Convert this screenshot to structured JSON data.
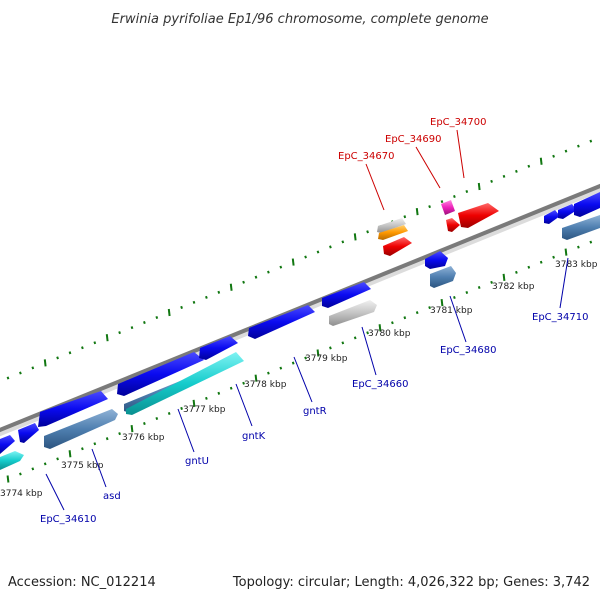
{
  "title": "Erwinia pyrifoliae Ep1/96 chromosome, complete genome",
  "footer": {
    "accession": "Accession: NC_012214",
    "summary": "Topology: circular; Length: 4,026,322 bp; Genes: 3,742"
  },
  "colors": {
    "forward_label": "#cc0000",
    "reverse_label": "#0000aa",
    "backbone": "#7a7a7a",
    "tick": "#117711"
  },
  "scale_labels": [
    "3774 kbp",
    "3775 kbp",
    "3776 kbp",
    "3777 kbp",
    "3778 kbp",
    "3779 kbp",
    "3780 kbp",
    "3781 kbp",
    "3782 kbp",
    "3783 kbp"
  ],
  "gene_labels": {
    "EpC_34670": "EpC_34670",
    "EpC_34690": "EpC_34690",
    "EpC_34700": "EpC_34700",
    "EpC_34610": "EpC_34610",
    "asd": "asd",
    "gntU": "gntU",
    "gntK": "gntK",
    "gntR": "gntR",
    "EpC_34660": "EpC_34660",
    "EpC_34680": "EpC_34680",
    "EpC_34710": "EpC_34710"
  }
}
